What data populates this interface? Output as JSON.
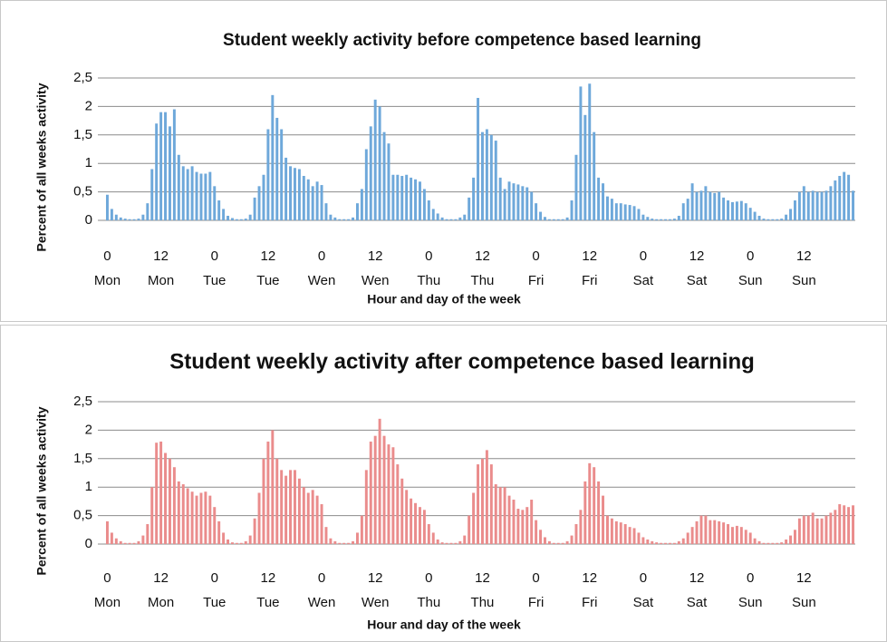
{
  "chart_data": [
    {
      "type": "bar",
      "title": "Student weekly activity before competence based learning",
      "xlabel": "Hour and day of the week",
      "ylabel": "Percent of all weeks activity",
      "color": "#6ea8da",
      "x": [
        0,
        1,
        2,
        3,
        4,
        5,
        6,
        7,
        8,
        9,
        10,
        11,
        12,
        13,
        14,
        15,
        16,
        17,
        18,
        19,
        20,
        21,
        22,
        23,
        24,
        25,
        26,
        27,
        28,
        29,
        30,
        31,
        32,
        33,
        34,
        35,
        36,
        37,
        38,
        39,
        40,
        41,
        42,
        43,
        44,
        45,
        46,
        47,
        48,
        49,
        50,
        51,
        52,
        53,
        54,
        55,
        56,
        57,
        58,
        59,
        60,
        61,
        62,
        63,
        64,
        65,
        66,
        67,
        68,
        69,
        70,
        71,
        72,
        73,
        74,
        75,
        76,
        77,
        78,
        79,
        80,
        81,
        82,
        83,
        84,
        85,
        86,
        87,
        88,
        89,
        90,
        91,
        92,
        93,
        94,
        95,
        96,
        97,
        98,
        99,
        100,
        101,
        102,
        103,
        104,
        105,
        106,
        107,
        108,
        109,
        110,
        111,
        112,
        113,
        114,
        115,
        116,
        117,
        118,
        119,
        120,
        121,
        122,
        123,
        124,
        125,
        126,
        127,
        128,
        129,
        130,
        131,
        132,
        133,
        134,
        135,
        136,
        137,
        138,
        139,
        140,
        141,
        142,
        143,
        144,
        145,
        146,
        147,
        148,
        149,
        150,
        151,
        152,
        153,
        154,
        155,
        156,
        157,
        158,
        159,
        160,
        161,
        162,
        163,
        164,
        165,
        166,
        167
      ],
      "values": [
        0.45,
        0.2,
        0.1,
        0.05,
        0.03,
        0.02,
        0.02,
        0.03,
        0.1,
        0.3,
        0.9,
        1.7,
        1.9,
        1.9,
        1.65,
        1.95,
        1.15,
        0.95,
        0.9,
        0.95,
        0.85,
        0.82,
        0.82,
        0.85,
        0.6,
        0.35,
        0.2,
        0.08,
        0.04,
        0.02,
        0.02,
        0.03,
        0.1,
        0.4,
        0.6,
        0.8,
        1.6,
        2.2,
        1.8,
        1.6,
        1.1,
        0.95,
        0.92,
        0.9,
        0.78,
        0.72,
        0.6,
        0.68,
        0.62,
        0.3,
        0.1,
        0.05,
        0.02,
        0.02,
        0.02,
        0.05,
        0.3,
        0.55,
        1.25,
        1.65,
        2.12,
        2.0,
        1.55,
        1.35,
        0.8,
        0.8,
        0.78,
        0.8,
        0.75,
        0.72,
        0.68,
        0.55,
        0.35,
        0.2,
        0.12,
        0.05,
        0.02,
        0.02,
        0.02,
        0.05,
        0.1,
        0.4,
        0.75,
        2.15,
        1.55,
        1.6,
        1.5,
        1.4,
        0.75,
        0.55,
        0.68,
        0.65,
        0.63,
        0.6,
        0.58,
        0.5,
        0.3,
        0.15,
        0.06,
        0.02,
        0.02,
        0.02,
        0.02,
        0.05,
        0.35,
        1.15,
        2.35,
        1.85,
        2.4,
        1.55,
        0.75,
        0.65,
        0.42,
        0.38,
        0.3,
        0.3,
        0.28,
        0.27,
        0.25,
        0.2,
        0.1,
        0.06,
        0.03,
        0.02,
        0.02,
        0.02,
        0.02,
        0.03,
        0.08,
        0.3,
        0.38,
        0.65,
        0.5,
        0.52,
        0.6,
        0.5,
        0.48,
        0.5,
        0.4,
        0.35,
        0.32,
        0.33,
        0.34,
        0.3,
        0.22,
        0.15,
        0.08,
        0.03,
        0.02,
        0.02,
        0.02,
        0.03,
        0.1,
        0.2,
        0.35,
        0.5,
        0.6,
        0.5,
        0.52,
        0.5,
        0.5,
        0.52,
        0.6,
        0.7,
        0.78,
        0.85,
        0.8,
        0.52
      ],
      "xlim": [
        -0.5,
        167.5
      ],
      "xticks": [
        {
          "value": 0,
          "label": "0",
          "day": "Mon"
        },
        {
          "value": 12,
          "label": "12",
          "day": "Mon"
        },
        {
          "value": 24,
          "label": "0",
          "day": "Tue"
        },
        {
          "value": 36,
          "label": "12",
          "day": "Tue"
        },
        {
          "value": 48,
          "label": "0",
          "day": "Wen"
        },
        {
          "value": 60,
          "label": "12",
          "day": "Wen"
        },
        {
          "value": 72,
          "label": "0",
          "day": "Thu"
        },
        {
          "value": 84,
          "label": "12",
          "day": "Thu"
        },
        {
          "value": 96,
          "label": "0",
          "day": "Fri"
        },
        {
          "value": 108,
          "label": "12",
          "day": "Fri"
        },
        {
          "value": 120,
          "label": "0",
          "day": "Sat"
        },
        {
          "value": 132,
          "label": "12",
          "day": "Sat"
        },
        {
          "value": 144,
          "label": "0",
          "day": "Sun"
        },
        {
          "value": 156,
          "label": "12",
          "day": "Sun"
        }
      ],
      "ylim": [
        0,
        2.5
      ],
      "yticks": [
        0,
        {
          "value": 0.5,
          "label": "0,5"
        },
        1,
        {
          "value": 1.5,
          "label": "1,5"
        },
        2,
        {
          "value": 2.5,
          "label": "2,5"
        }
      ],
      "grid": true
    },
    {
      "type": "bar",
      "title": "Student weekly activity after competence based learning",
      "xlabel": "Hour and day of the week",
      "ylabel": "Percent of all weeks activity",
      "color": "#ea8c8c",
      "x": [
        0,
        1,
        2,
        3,
        4,
        5,
        6,
        7,
        8,
        9,
        10,
        11,
        12,
        13,
        14,
        15,
        16,
        17,
        18,
        19,
        20,
        21,
        22,
        23,
        24,
        25,
        26,
        27,
        28,
        29,
        30,
        31,
        32,
        33,
        34,
        35,
        36,
        37,
        38,
        39,
        40,
        41,
        42,
        43,
        44,
        45,
        46,
        47,
        48,
        49,
        50,
        51,
        52,
        53,
        54,
        55,
        56,
        57,
        58,
        59,
        60,
        61,
        62,
        63,
        64,
        65,
        66,
        67,
        68,
        69,
        70,
        71,
        72,
        73,
        74,
        75,
        76,
        77,
        78,
        79,
        80,
        81,
        82,
        83,
        84,
        85,
        86,
        87,
        88,
        89,
        90,
        91,
        92,
        93,
        94,
        95,
        96,
        97,
        98,
        99,
        100,
        101,
        102,
        103,
        104,
        105,
        106,
        107,
        108,
        109,
        110,
        111,
        112,
        113,
        114,
        115,
        116,
        117,
        118,
        119,
        120,
        121,
        122,
        123,
        124,
        125,
        126,
        127,
        128,
        129,
        130,
        131,
        132,
        133,
        134,
        135,
        136,
        137,
        138,
        139,
        140,
        141,
        142,
        143,
        144,
        145,
        146,
        147,
        148,
        149,
        150,
        151,
        152,
        153,
        154,
        155,
        156,
        157,
        158,
        159,
        160,
        161,
        162,
        163,
        164,
        165,
        166,
        167
      ],
      "values": [
        0.4,
        0.2,
        0.1,
        0.05,
        0.02,
        0.02,
        0.02,
        0.05,
        0.15,
        0.35,
        1.0,
        1.78,
        1.8,
        1.6,
        1.5,
        1.35,
        1.1,
        1.05,
        0.98,
        0.92,
        0.85,
        0.9,
        0.92,
        0.85,
        0.65,
        0.4,
        0.2,
        0.08,
        0.03,
        0.02,
        0.02,
        0.05,
        0.15,
        0.45,
        0.9,
        1.5,
        1.8,
        2.0,
        1.5,
        1.3,
        1.2,
        1.3,
        1.3,
        1.15,
        1.0,
        0.9,
        0.95,
        0.85,
        0.7,
        0.3,
        0.1,
        0.05,
        0.02,
        0.02,
        0.02,
        0.05,
        0.2,
        0.5,
        1.3,
        1.8,
        1.9,
        2.2,
        1.9,
        1.75,
        1.7,
        1.4,
        1.15,
        0.95,
        0.8,
        0.72,
        0.65,
        0.6,
        0.35,
        0.2,
        0.08,
        0.03,
        0.02,
        0.02,
        0.02,
        0.05,
        0.15,
        0.5,
        0.9,
        1.4,
        1.5,
        1.65,
        1.4,
        1.05,
        1.0,
        1.0,
        0.85,
        0.78,
        0.62,
        0.6,
        0.65,
        0.78,
        0.42,
        0.25,
        0.12,
        0.05,
        0.02,
        0.02,
        0.02,
        0.05,
        0.15,
        0.35,
        0.6,
        1.1,
        1.42,
        1.35,
        1.1,
        0.85,
        0.5,
        0.45,
        0.4,
        0.38,
        0.35,
        0.3,
        0.28,
        0.2,
        0.12,
        0.08,
        0.05,
        0.03,
        0.02,
        0.02,
        0.02,
        0.02,
        0.05,
        0.1,
        0.2,
        0.3,
        0.4,
        0.5,
        0.5,
        0.42,
        0.42,
        0.4,
        0.38,
        0.35,
        0.3,
        0.32,
        0.3,
        0.25,
        0.2,
        0.1,
        0.05,
        0.02,
        0.02,
        0.02,
        0.02,
        0.03,
        0.08,
        0.15,
        0.25,
        0.45,
        0.5,
        0.5,
        0.55,
        0.45,
        0.45,
        0.5,
        0.55,
        0.6,
        0.7,
        0.68,
        0.65,
        0.68
      ],
      "xlim": [
        -0.5,
        167.5
      ],
      "xticks": [
        {
          "value": 0,
          "label": "0",
          "day": "Mon"
        },
        {
          "value": 12,
          "label": "12",
          "day": "Mon"
        },
        {
          "value": 24,
          "label": "0",
          "day": "Tue"
        },
        {
          "value": 36,
          "label": "12",
          "day": "Tue"
        },
        {
          "value": 48,
          "label": "0",
          "day": "Wen"
        },
        {
          "value": 60,
          "label": "12",
          "day": "Wen"
        },
        {
          "value": 72,
          "label": "0",
          "day": "Thu"
        },
        {
          "value": 84,
          "label": "12",
          "day": "Thu"
        },
        {
          "value": 96,
          "label": "0",
          "day": "Fri"
        },
        {
          "value": 108,
          "label": "12",
          "day": "Fri"
        },
        {
          "value": 120,
          "label": "0",
          "day": "Sat"
        },
        {
          "value": 132,
          "label": "12",
          "day": "Sat"
        },
        {
          "value": 144,
          "label": "0",
          "day": "Sun"
        },
        {
          "value": 156,
          "label": "12",
          "day": "Sun"
        }
      ],
      "ylim": [
        0,
        2.5
      ],
      "yticks": [
        0,
        {
          "value": 0.5,
          "label": "0,5"
        },
        1,
        {
          "value": 1.5,
          "label": "1,5"
        },
        2,
        {
          "value": 2.5,
          "label": "2,5"
        }
      ],
      "grid": true
    }
  ]
}
